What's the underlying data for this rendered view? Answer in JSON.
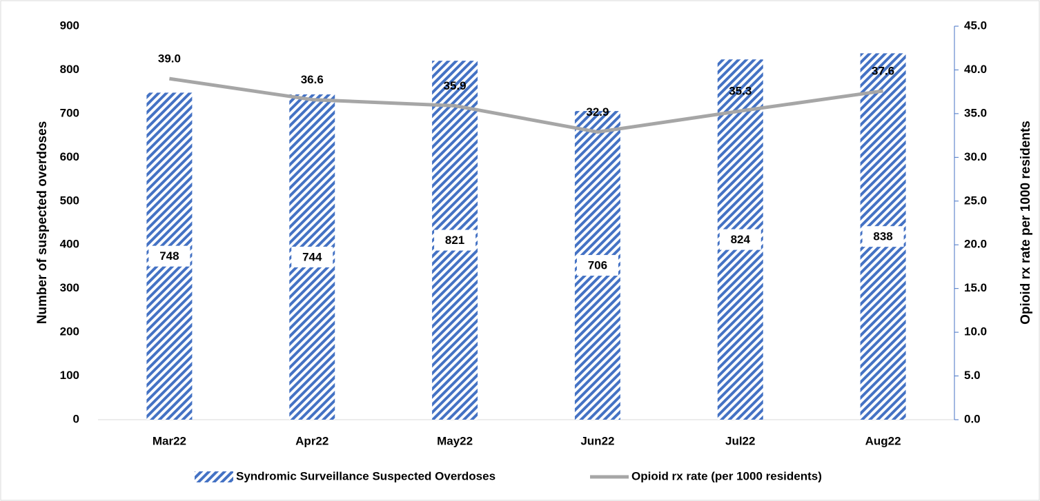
{
  "chart_data": {
    "type": "bar",
    "categories": [
      "Mar22",
      "Apr22",
      "May22",
      "Jun22",
      "Jul22",
      "Aug22"
    ],
    "ylabel": "Number of suspected overdoses",
    "y2label": "Opioid rx rate per 1000 residents",
    "ylim": [
      0,
      900
    ],
    "yticks": [
      0,
      100,
      200,
      300,
      400,
      500,
      600,
      700,
      800,
      900
    ],
    "y2lim": [
      0,
      45
    ],
    "y2ticks": [
      {
        "value": 0,
        "label": "0.0"
      },
      {
        "value": 5,
        "label": "5.0"
      },
      {
        "value": 10,
        "label": "10.0"
      },
      {
        "value": 15,
        "label": "15.0"
      },
      {
        "value": 20,
        "label": "20.0"
      },
      {
        "value": 25,
        "label": "25.0"
      },
      {
        "value": 30,
        "label": "30.0"
      },
      {
        "value": 35,
        "label": "35.0"
      },
      {
        "value": 40,
        "label": "40.0"
      },
      {
        "value": 45,
        "label": "45.0"
      }
    ],
    "legend": "bottom",
    "series": [
      {
        "name": "Syndromic Surveillance Suspected Overdoses",
        "type": "bar",
        "color": "#4472c4",
        "values": [
          748,
          744,
          821,
          706,
          824,
          838
        ]
      },
      {
        "name": "Opioid rx rate (per 1000 residents)",
        "type": "line",
        "color": "#a6a6a6",
        "axis": "y2",
        "values": [
          39.0,
          36.6,
          35.9,
          32.9,
          35.3,
          37.6
        ],
        "value_labels": [
          "39.0",
          "36.6",
          "35.9",
          "32.9",
          "35.3",
          "37.6"
        ]
      }
    ]
  }
}
